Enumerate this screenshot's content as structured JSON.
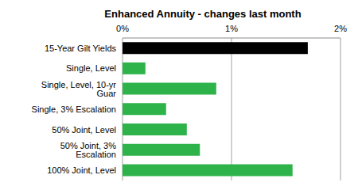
{
  "chart_data": {
    "type": "bar",
    "title": "Enhanced Annuity  - changes last month",
    "orientation": "horizontal",
    "categories": [
      "15-Year Gilt Yields",
      "Single, Level",
      "Single, Level, 10-yr Guar",
      "Single, 3% Escalation",
      "50% Joint, Level",
      "50% Joint, 3% Escalation",
      "100% Joint, Level"
    ],
    "values": [
      1.7,
      0.21,
      0.86,
      0.4,
      0.59,
      0.71,
      1.56
    ],
    "colors": [
      "#000000",
      "#2eb34b",
      "#2eb34b",
      "#2eb34b",
      "#2eb34b",
      "#2eb34b",
      "#2eb34b"
    ],
    "xlim": [
      0,
      2
    ],
    "xticks": [
      {
        "value": 0,
        "label": "0%"
      },
      {
        "value": 1,
        "label": "1%"
      },
      {
        "value": 2,
        "label": "2%"
      }
    ],
    "grid": true
  }
}
